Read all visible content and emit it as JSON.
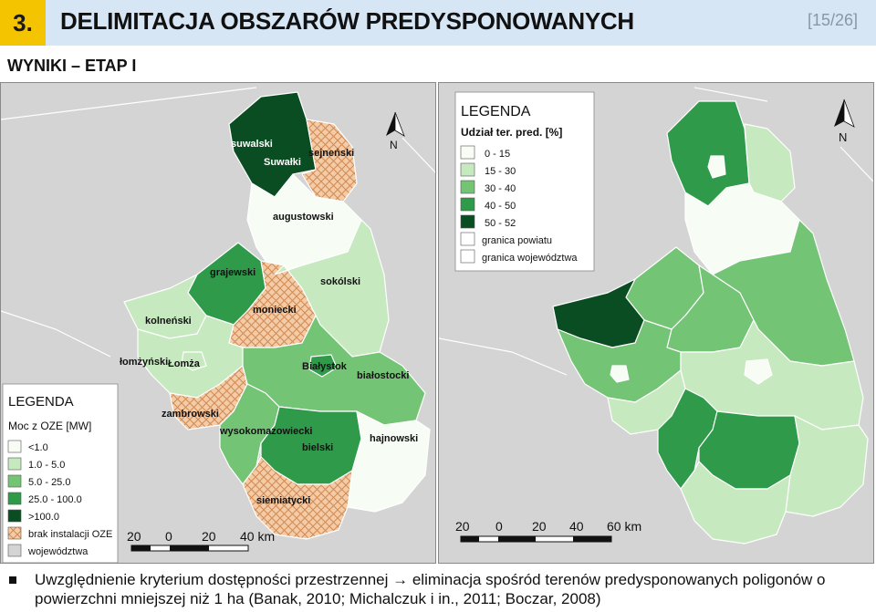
{
  "header": {
    "number": "3.",
    "title": "DELIMITACJA OBSZARÓW PREDYSPONOWANYCH",
    "page": "[15/26]"
  },
  "subtitle": "WYNIKI – ETAP I",
  "colors": {
    "c0": "#f7fcf5",
    "c1": "#c7e9c0",
    "c2": "#74c476",
    "c3": "#2e9a4a",
    "c4": "#0b4d22",
    "hatch": "#f4cba4",
    "hatch_line": "#d08a55",
    "outside": "#d4d4d4"
  },
  "left_map": {
    "labels": {
      "suwalski": "suwalski",
      "suwalki": "Suwałki",
      "sejnenski": "sejneński",
      "augustowski": "augustowski",
      "grajewski": "grajewski",
      "moniecki": "moniecki",
      "sokolski": "sokólski",
      "kolnenski": "kolneński",
      "lomzynski": "łomżyński",
      "lomza": "Łomża",
      "bialystok": "Białystok",
      "bialostocki": "białostocki",
      "zambrowski": "zambrowski",
      "wysokomazowiecki": "wysokomazowiecki",
      "bielski": "bielski",
      "hajnowski": "hajnowski",
      "siemiatycki": "siemiatycki"
    },
    "legend": {
      "title": "LEGENDA",
      "subtitle": "Moc z OZE [MW]",
      "items": [
        "<1.0",
        "1.0 - 5.0",
        "5.0 - 25.0",
        "25.0 - 100.0",
        ">100.0",
        "brak instalacji OZE",
        "województwa"
      ]
    },
    "north": "N",
    "scale": {
      "labels": [
        "20",
        "0",
        "20",
        "40 km"
      ]
    }
  },
  "right_map": {
    "legend": {
      "title": "LEGENDA",
      "subtitle": "Udział ter. pred. [%]",
      "items": [
        "0 - 15",
        "15 - 30",
        "30 - 40",
        "40 - 50",
        "50 - 52",
        "granica powiatu",
        "granica województwa"
      ]
    },
    "north": "N",
    "scale": {
      "labels": [
        "20",
        "0",
        "20",
        "40",
        "60 km"
      ]
    }
  },
  "footer": {
    "line1": "Uwzględnienie kryterium dostępności przestrzennej → eliminacja spośród terenów predysponowanych poligonów o",
    "line2": "powierzchni mniejszej niż 1 ha (Banak, 2010; Michalczuk i in., 2011; Boczar, 2008)"
  }
}
